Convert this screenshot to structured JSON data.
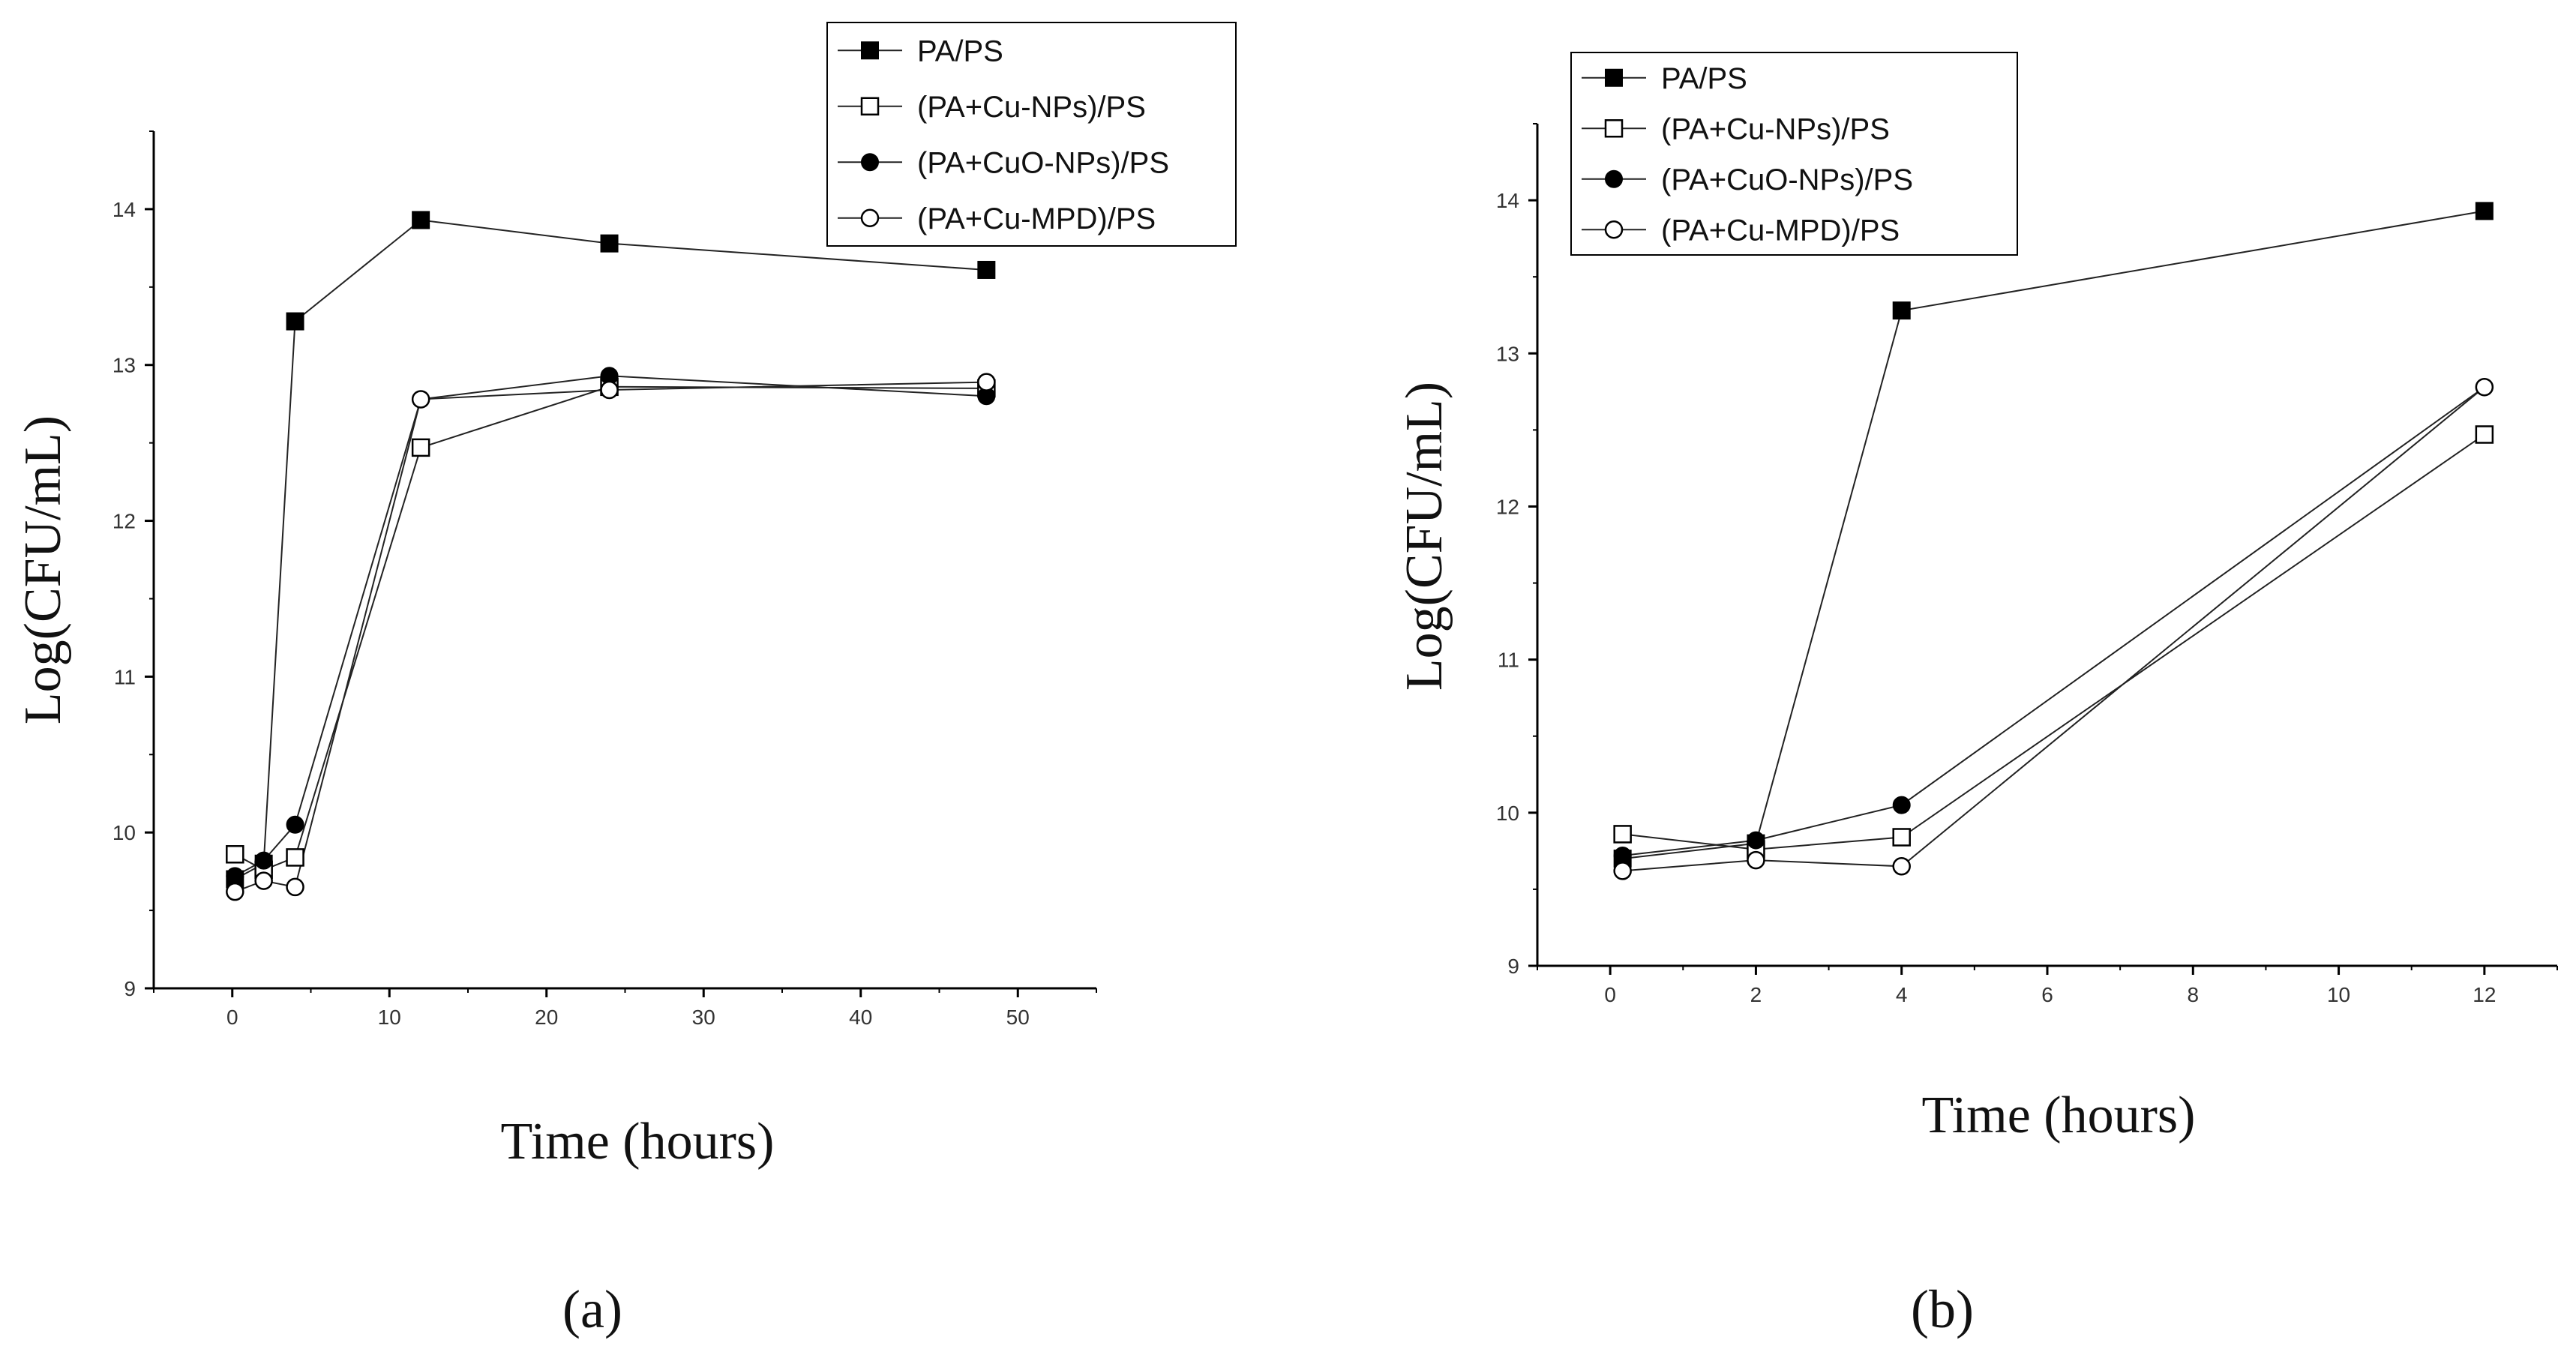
{
  "chart_data": [
    {
      "type": "line",
      "panel": "(a)",
      "xlabel": "Time (hours)",
      "ylabel": "Log(CFU/mL)",
      "xlim": [
        -5,
        55
      ],
      "ylim": [
        9,
        14.5
      ],
      "xticks": [
        0,
        10,
        20,
        30,
        40,
        50
      ],
      "yticks": [
        9,
        10,
        11,
        12,
        13,
        14
      ],
      "legend_position": "top-right",
      "series": [
        {
          "name": "PA/PS",
          "marker": "filled-square",
          "x": [
            0.17,
            2,
            4,
            12,
            24,
            48
          ],
          "values": [
            9.7,
            9.8,
            13.28,
            13.93,
            13.78,
            13.61
          ]
        },
        {
          "name": "(PA+Cu-NPs)/PS",
          "marker": "open-square",
          "x": [
            0.17,
            2,
            4,
            12,
            24,
            48
          ],
          "values": [
            9.86,
            9.76,
            9.84,
            12.47,
            12.86,
            12.85
          ]
        },
        {
          "name": "(PA+CuO-NPs)/PS",
          "marker": "filled-circle",
          "x": [
            0.17,
            2,
            4,
            12,
            24,
            48
          ],
          "values": [
            9.72,
            9.82,
            10.05,
            12.78,
            12.93,
            12.8
          ]
        },
        {
          "name": "(PA+Cu-MPD)/PS",
          "marker": "open-circle",
          "x": [
            0.17,
            2,
            4,
            12,
            24,
            48
          ],
          "values": [
            9.62,
            9.69,
            9.65,
            12.78,
            12.84,
            12.89
          ]
        }
      ]
    },
    {
      "type": "line",
      "panel": "(b)",
      "xlabel": "Time (hours)",
      "ylabel": "Log(CFU/mL)",
      "xlim": [
        -1,
        13
      ],
      "ylim": [
        9,
        14.5
      ],
      "xticks": [
        0,
        2,
        4,
        6,
        8,
        10,
        12
      ],
      "yticks": [
        9,
        10,
        11,
        12,
        13,
        14
      ],
      "legend_position": "top-left",
      "series": [
        {
          "name": "PA/PS",
          "marker": "filled-square",
          "x": [
            0.17,
            2,
            4,
            12
          ],
          "values": [
            9.7,
            9.8,
            13.28,
            13.93
          ]
        },
        {
          "name": "(PA+Cu-NPs)/PS",
          "marker": "open-square",
          "x": [
            0.17,
            2,
            4,
            12
          ],
          "values": [
            9.86,
            9.76,
            9.84,
            12.47
          ]
        },
        {
          "name": "(PA+CuO-NPs)/PS",
          "marker": "filled-circle",
          "x": [
            0.17,
            2,
            4,
            12
          ],
          "values": [
            9.72,
            9.82,
            10.05,
            12.78
          ]
        },
        {
          "name": "(PA+Cu-MPD)/PS",
          "marker": "open-circle",
          "x": [
            0.17,
            2,
            4,
            12
          ],
          "values": [
            9.62,
            9.69,
            9.65,
            12.78
          ]
        }
      ]
    }
  ]
}
